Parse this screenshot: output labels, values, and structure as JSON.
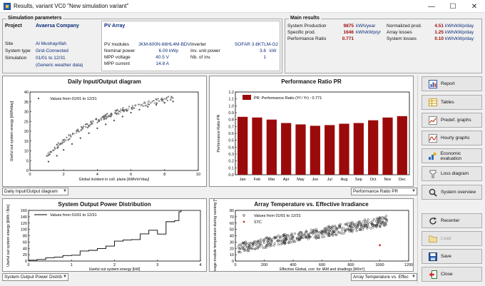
{
  "window": {
    "title": "Results, variant VC0  \"New simulation variant\""
  },
  "sim_params": {
    "title": "Simulation parameters",
    "project": {
      "label": "Project",
      "value": "Avaersa Company"
    },
    "site": {
      "label": "Site",
      "value": "Al Mushayrifah"
    },
    "system_type": {
      "label": "System type",
      "value": "Grid-Connected"
    },
    "simulation": {
      "label": "Simulation",
      "value": "01/01 to 12/31"
    },
    "weather": "(Generic weather data)",
    "pv_array": {
      "title": "PV Array",
      "modules_label": "PV modules",
      "modules_value": "JKM-600N-66HL4M-BDV",
      "nominal_label": "Nominal power",
      "nominal_value": "6.00 kWp",
      "mppv_label": "MPP voltage",
      "mppv_value": "40.5 V",
      "mppc_label": "MPP current",
      "mppc_value": "14.8 A",
      "inverter_label": "Inverter",
      "inverter_value": "SOFAR 3.6KTLM-G2",
      "unit_label": "Inv. unit power",
      "unit_value": "3.6",
      "unit_unit": "kW",
      "nb_label": "Nb. of inv.",
      "nb_value": "1"
    }
  },
  "main_results": {
    "title": "Main results",
    "rows": [
      {
        "label": "System Production",
        "value": "9875",
        "unit": "kWh/year"
      },
      {
        "label": "Specific prod.",
        "value": "1646",
        "unit": "kWh/kWp/yr"
      },
      {
        "label": "Performance Ratio",
        "value": "0.771",
        "unit": ""
      }
    ],
    "rows2": [
      {
        "label": "Normalized prod.",
        "value": "4.51",
        "unit": "kWh/kWp/day"
      },
      {
        "label": "Array losses",
        "value": "1.25",
        "unit": "kWh/kWp/day"
      },
      {
        "label": "System losses",
        "value": "0.10",
        "unit": "kWh/kWp/day"
      }
    ]
  },
  "charts": {
    "c1": {
      "title": "Daily Input/Output diagram",
      "legend": "Values from 01/01 to 12/31",
      "xlabel": "Global incident in coll. plane [kWh/m²/day]",
      "ylabel": "Useful out system energy [kWh/day]",
      "xticks": [
        "0",
        "2",
        "4",
        "6",
        "8",
        "10"
      ],
      "yticks": [
        "0",
        "5",
        "10",
        "15",
        "20",
        "25",
        "30",
        "35",
        "40"
      ],
      "combo": "Daily Input/Output diagram"
    },
    "c2": {
      "title": "Performance Ratio PR",
      "legend": "PR: Performance Ratio (Yf / Yr) :  0.771",
      "ylabel": "Performance Ratio PR",
      "yticks": [
        "0.0",
        "0.1",
        "0.2",
        "0.3",
        "0.4",
        "0.5",
        "0.6",
        "0.7",
        "0.8",
        "0.9",
        "1.0",
        "1.1",
        "1.2"
      ],
      "combo": "Performance Ratio PR",
      "bar_color": "#9b0a0a"
    },
    "c3": {
      "title": "System Output Power Distribution",
      "legend": "Values from 01/01 to 12/31",
      "xlabel": "Useful out system energy [kW]",
      "ylabel": "Useful out system energy [kWh / Bin]",
      "xticks": [
        "0",
        "1",
        "2",
        "3",
        "4"
      ],
      "yticks": [
        "0",
        "20",
        "40",
        "60",
        "80",
        "100",
        "120",
        "140",
        "160"
      ],
      "combo": "System Output Power Distrib"
    },
    "c4": {
      "title": "Array Temperature vs. Effective Irradiance",
      "legend1": "Values from 01/01 to 12/31",
      "legend2": "STC",
      "xlabel": "Effective Global, corr. for IAM and shadings [W/m²]",
      "ylabel": "Average module temperature during running [°C]",
      "xticks": [
        "0",
        "200",
        "400",
        "600",
        "800",
        "1000",
        "1200"
      ],
      "yticks": [
        "0",
        "10",
        "20",
        "30",
        "40",
        "50",
        "60",
        "70",
        "80"
      ],
      "combo": "Array Temperature vs. Effec"
    }
  },
  "chart_data": [
    {
      "type": "scatter",
      "title": "Daily Input/Output diagram",
      "xlabel": "Global incident in coll. plane [kWh/m²/day]",
      "ylabel": "Useful out system energy [kWh/day]",
      "xlim": [
        0,
        10
      ],
      "ylim": [
        0,
        40
      ],
      "series": [
        {
          "name": "Values from 01/01 to 12/31",
          "x": [
            1.1,
            1.6,
            2.0,
            2.5,
            3.0,
            3.5,
            4.0,
            4.5,
            5.0,
            5.5,
            6.0,
            6.5,
            7.0,
            7.5,
            8.0,
            8.5
          ],
          "y": [
            4.5,
            7.5,
            10.5,
            13.5,
            16.5,
            19.0,
            21.5,
            23.5,
            25.5,
            27.5,
            29.5,
            31,
            32.5,
            33.5,
            34.5,
            35.2
          ]
        }
      ]
    },
    {
      "type": "bar",
      "title": "Performance Ratio PR",
      "ylabel": "Performance Ratio PR",
      "categories": [
        "Jan",
        "Feb",
        "Mar",
        "Apr",
        "May",
        "Jun",
        "Jul",
        "Aug",
        "Sep",
        "Oct",
        "Nov",
        "Dec"
      ],
      "ylim": [
        0,
        1.2
      ],
      "series": [
        {
          "name": "PR: Performance Ratio (Yf / Yr) :  0.771",
          "values": [
            0.84,
            0.83,
            0.8,
            0.75,
            0.73,
            0.71,
            0.72,
            0.74,
            0.75,
            0.79,
            0.83,
            0.85
          ]
        }
      ]
    },
    {
      "type": "line",
      "title": "System Output Power Distribution",
      "xlabel": "Useful out system energy [kW]",
      "ylabel": "Useful out system energy [kWh / Bin]",
      "xlim": [
        0,
        4
      ],
      "ylim": [
        0,
        180
      ],
      "series": [
        {
          "name": "Values from 01/01 to 12/31",
          "x": [
            0.0,
            0.2,
            0.4,
            0.6,
            0.8,
            1.0,
            1.2,
            1.4,
            1.6,
            1.8,
            2.0,
            2.2,
            2.4,
            2.6,
            2.8,
            3.0,
            3.2,
            3.4,
            3.5,
            3.55
          ],
          "y": [
            3,
            6,
            10,
            14,
            18,
            22,
            30,
            38,
            45,
            52,
            60,
            68,
            78,
            90,
            100,
            112,
            120,
            130,
            165,
            180
          ]
        }
      ]
    },
    {
      "type": "scatter",
      "title": "Array Temperature vs. Effective Irradiance",
      "xlabel": "Effective Global, corr. for IAM and shadings [W/m²]",
      "ylabel": "Average module temperature during running [°C]",
      "xlim": [
        0,
        1200
      ],
      "ylim": [
        0,
        80
      ],
      "series": [
        {
          "name": "Values from 01/01 to 12/31",
          "x": [
            50,
            100,
            150,
            200,
            250,
            300,
            350,
            400,
            450,
            500,
            550,
            600,
            650,
            700,
            750,
            800,
            850,
            900,
            950,
            1000,
            1050
          ],
          "y": [
            22,
            24,
            27,
            29,
            31,
            33,
            36,
            38,
            40,
            42,
            44,
            46,
            48,
            50,
            52,
            54,
            56,
            57,
            59,
            61,
            63
          ]
        },
        {
          "name": "STC",
          "x": [
            1000
          ],
          "y": [
            25
          ]
        }
      ]
    }
  ],
  "buttons": [
    {
      "id": "report",
      "label": "Report"
    },
    {
      "id": "tables",
      "label": "Tables"
    },
    {
      "id": "predef",
      "label": "Predef. graphs"
    },
    {
      "id": "hourly",
      "label": "Hourly graphs"
    },
    {
      "id": "economic",
      "label": "Economic evaluation"
    },
    {
      "id": "loss",
      "label": "Loss diagram"
    },
    {
      "id": "overview",
      "label": "System overview"
    }
  ],
  "buttons2": [
    {
      "id": "recenter",
      "label": "Recenter"
    },
    {
      "id": "load",
      "label": "Load"
    },
    {
      "id": "save",
      "label": "Save"
    },
    {
      "id": "close",
      "label": "Close"
    }
  ]
}
